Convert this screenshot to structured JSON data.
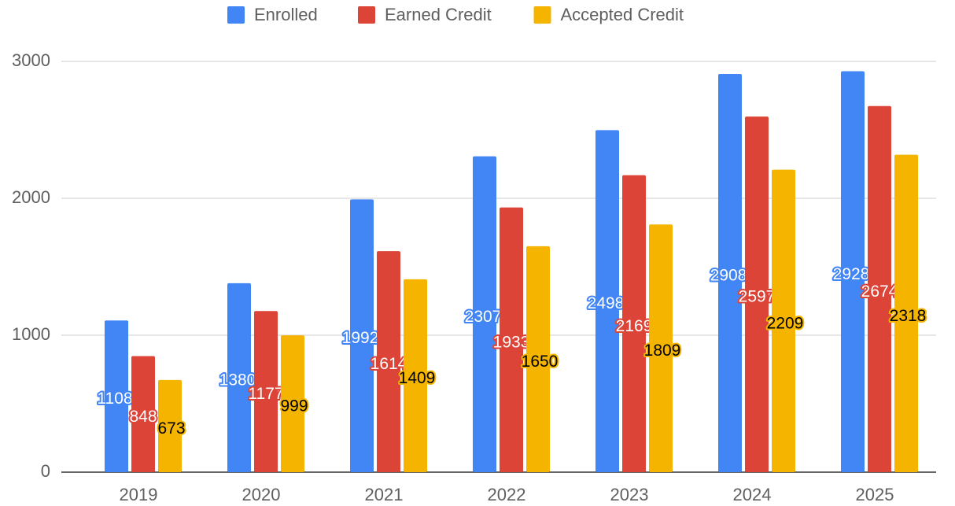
{
  "chart_data": {
    "type": "bar",
    "categories": [
      "2019",
      "2020",
      "2021",
      "2022",
      "2023",
      "2024",
      "2025"
    ],
    "series": [
      {
        "name": "Enrolled",
        "color": "#4285f4",
        "values": [
          1108,
          1380,
          1992,
          2307,
          2498,
          2908,
          2928
        ]
      },
      {
        "name": "Earned Credit",
        "color": "#db4437",
        "values": [
          848,
          1177,
          1614,
          1933,
          2169,
          2597,
          2674
        ]
      },
      {
        "name": "Accepted Credit",
        "color": "#f4b400",
        "values": [
          673,
          999,
          1409,
          1650,
          1809,
          2209,
          2318
        ]
      }
    ],
    "ylim": [
      0,
      3000
    ],
    "yticks": [
      0,
      1000,
      2000,
      3000
    ],
    "grid": true,
    "legend": "top"
  }
}
